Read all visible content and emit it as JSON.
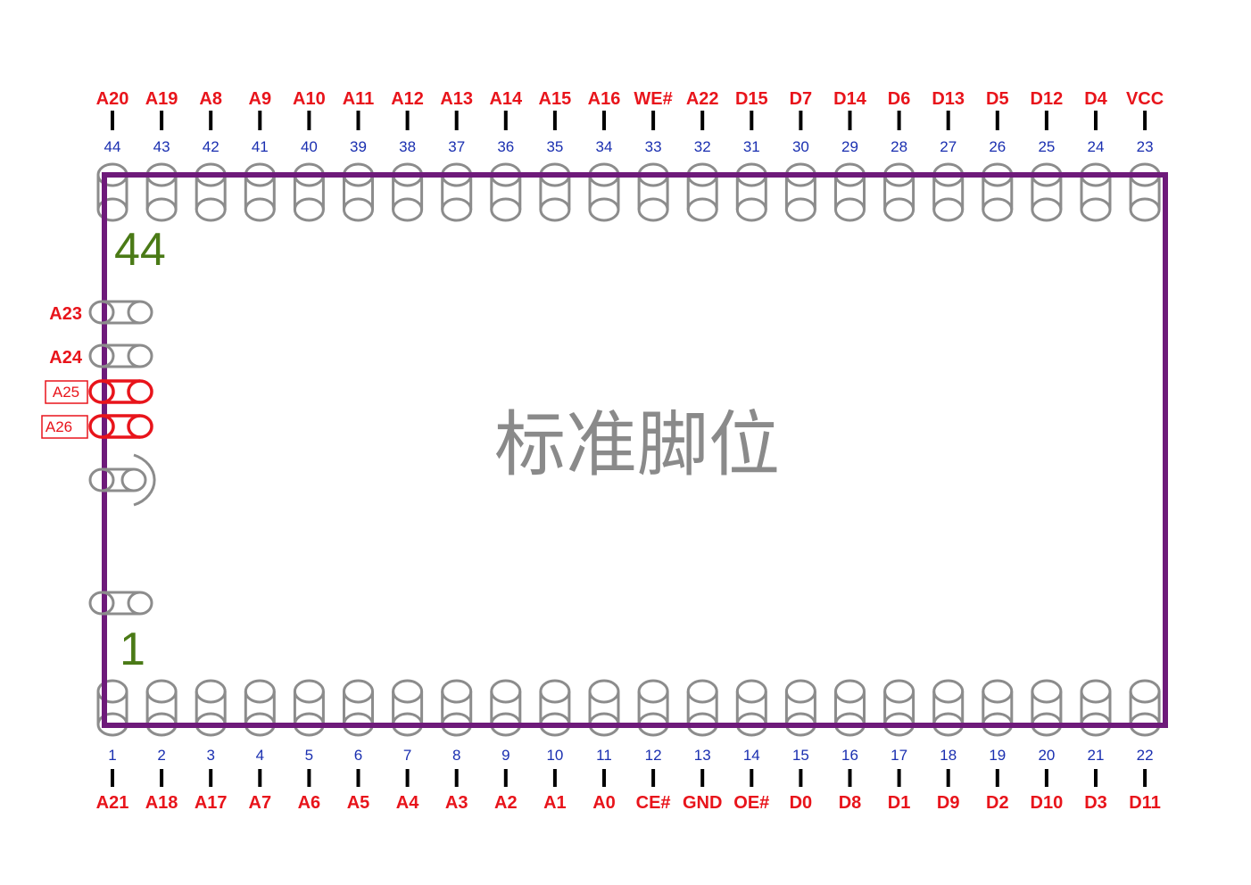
{
  "diagram": {
    "center_label": "标准脚位",
    "corner_labels": {
      "top_left": "44",
      "bottom_left": "1"
    },
    "top_pins": [
      {
        "num": "44",
        "signal": "A20"
      },
      {
        "num": "43",
        "signal": "A19"
      },
      {
        "num": "42",
        "signal": "A8"
      },
      {
        "num": "41",
        "signal": "A9"
      },
      {
        "num": "40",
        "signal": "A10"
      },
      {
        "num": "39",
        "signal": "A11"
      },
      {
        "num": "38",
        "signal": "A12"
      },
      {
        "num": "37",
        "signal": "A13"
      },
      {
        "num": "36",
        "signal": "A14"
      },
      {
        "num": "35",
        "signal": "A15"
      },
      {
        "num": "34",
        "signal": "A16"
      },
      {
        "num": "33",
        "signal": "WE#"
      },
      {
        "num": "32",
        "signal": "A22"
      },
      {
        "num": "31",
        "signal": "D15"
      },
      {
        "num": "30",
        "signal": "D7"
      },
      {
        "num": "29",
        "signal": "D14"
      },
      {
        "num": "28",
        "signal": "D6"
      },
      {
        "num": "27",
        "signal": "D13"
      },
      {
        "num": "26",
        "signal": "D5"
      },
      {
        "num": "25",
        "signal": "D12"
      },
      {
        "num": "24",
        "signal": "D4"
      },
      {
        "num": "23",
        "signal": "VCC"
      }
    ],
    "bottom_pins": [
      {
        "num": "1",
        "signal": "A21"
      },
      {
        "num": "2",
        "signal": "A18"
      },
      {
        "num": "3",
        "signal": "A17"
      },
      {
        "num": "4",
        "signal": "A7"
      },
      {
        "num": "5",
        "signal": "A6"
      },
      {
        "num": "6",
        "signal": "A5"
      },
      {
        "num": "7",
        "signal": "A4"
      },
      {
        "num": "8",
        "signal": "A3"
      },
      {
        "num": "9",
        "signal": "A2"
      },
      {
        "num": "10",
        "signal": "A1"
      },
      {
        "num": "11",
        "signal": "A0"
      },
      {
        "num": "12",
        "signal": "CE#"
      },
      {
        "num": "13",
        "signal": "GND"
      },
      {
        "num": "14",
        "signal": "OE#"
      },
      {
        "num": "15",
        "signal": "D0"
      },
      {
        "num": "16",
        "signal": "D8"
      },
      {
        "num": "17",
        "signal": "D1"
      },
      {
        "num": "18",
        "signal": "D9"
      },
      {
        "num": "19",
        "signal": "D2"
      },
      {
        "num": "20",
        "signal": "D10"
      },
      {
        "num": "21",
        "signal": "D3"
      },
      {
        "num": "22",
        "signal": "D11"
      }
    ],
    "left_pins": [
      {
        "signal": "A23",
        "style": "plain",
        "pad": "gray"
      },
      {
        "signal": "A24",
        "style": "plain",
        "pad": "gray"
      },
      {
        "signal": "A25",
        "style": "boxed",
        "pad": "red"
      },
      {
        "signal": "A26",
        "style": "boxed",
        "pad": "red"
      }
    ],
    "colors": {
      "signal": "#e8141b",
      "pin_number": "#1a2fb0",
      "outline": "#6e1a7a",
      "pad": "#8c8c8c",
      "corner_number": "#4a7a16",
      "center_label": "#8a8a8a"
    }
  }
}
